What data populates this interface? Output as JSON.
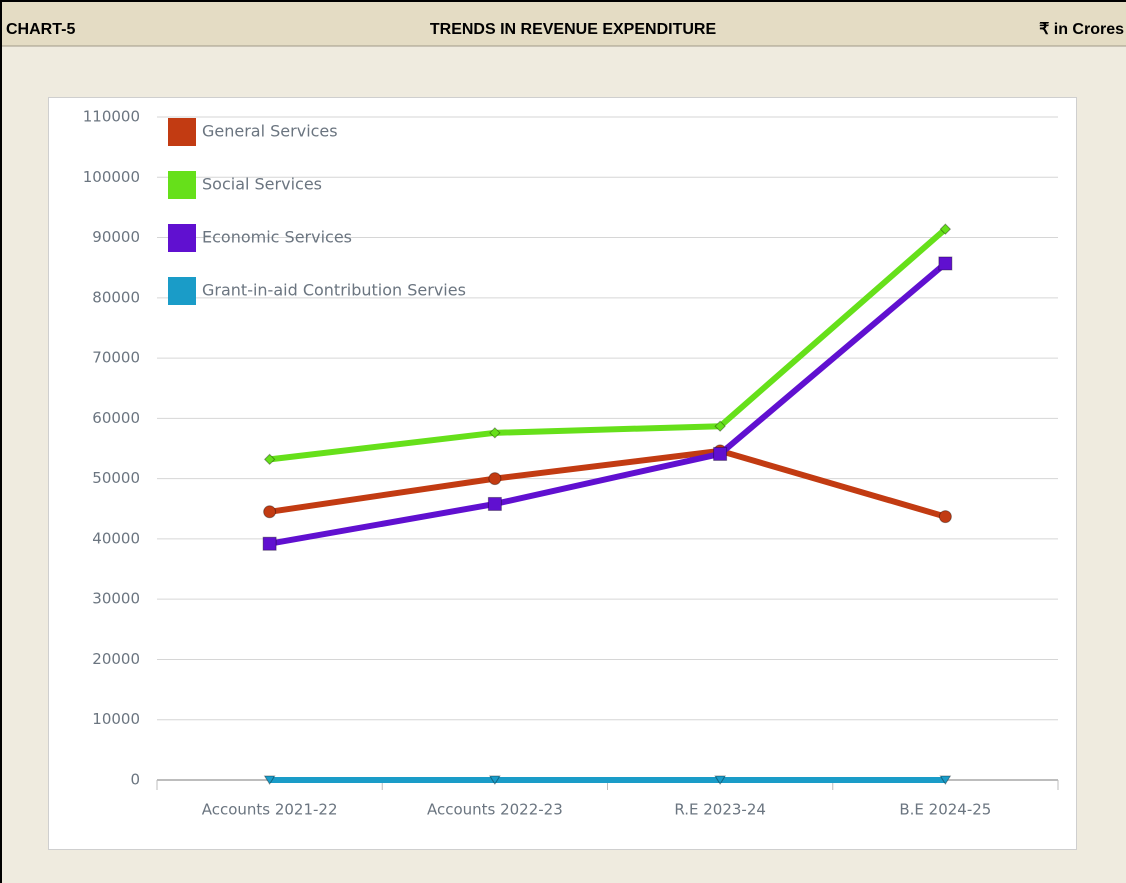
{
  "chart_label": "CHART-5",
  "unit_note": "₹ in Crores",
  "chart_data": {
    "type": "line",
    "title": "TRENDS IN REVENUE EXPENDITURE",
    "categories": [
      "Accounts 2021-22",
      "Accounts 2022-23",
      "R.E 2023-24",
      "B.E 2024-25"
    ],
    "series": [
      {
        "name": "General Services",
        "color": "#c23b12",
        "marker": "circle",
        "values": [
          44500,
          50000,
          54600,
          43700
        ]
      },
      {
        "name": "Social Services",
        "color": "#66e01a",
        "marker": "diamond",
        "values": [
          53200,
          57600,
          58700,
          91400
        ]
      },
      {
        "name": "Economic Services",
        "color": "#6010d0",
        "marker": "square",
        "values": [
          39200,
          45800,
          54100,
          85700
        ]
      },
      {
        "name": "Grant-in-aid Contribution Servies",
        "color": "#1a9cc8",
        "marker": "triangle",
        "values": [
          0,
          0,
          0,
          0
        ]
      }
    ],
    "ylim": [
      0,
      110000
    ],
    "yticks": [
      0,
      10000,
      20000,
      30000,
      40000,
      50000,
      60000,
      70000,
      80000,
      90000,
      100000,
      110000
    ],
    "grid": true,
    "legend": "top-left"
  }
}
